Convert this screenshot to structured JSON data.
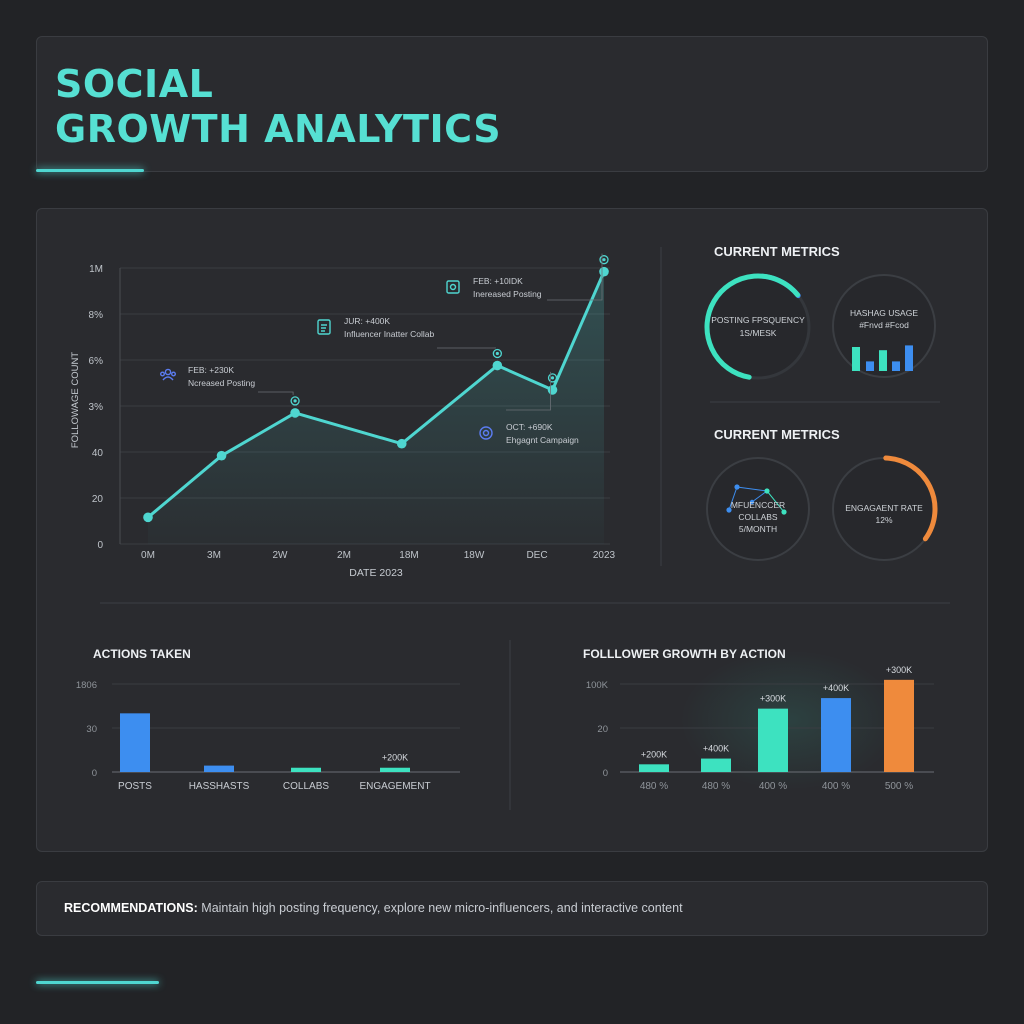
{
  "title": {
    "line1": "SOCIAL",
    "line2": "GROWTH ANALYTICS"
  },
  "colors": {
    "accent": "#4fd6d0",
    "line": "#4fd6d0",
    "blue": "#3d8ef0",
    "teal": "#3de2c0",
    "orange": "#ef8a3c",
    "background": "#222326",
    "panel": "#2a2b2f"
  },
  "metrics": {
    "heading_top": "CURRENT METRICS",
    "heading_bottom": "CURRENT METRICS",
    "posting": {
      "line1": "POSTING FPSQUENCY",
      "line2": "1S/MESK",
      "fraction": 0.78
    },
    "hashtag": {
      "line1": "HASHAG USAGE",
      "line2": "#Fnvd #Fcod",
      "bar_values": [
        0.75,
        0.3,
        0.65,
        0.3,
        0.8
      ]
    },
    "influencer": {
      "line1": "MFUENCCER",
      "line2": "COLLABS",
      "line3": "5/MONTH"
    },
    "engagement": {
      "line1": "ENGAGAENT RATE",
      "line2": "12%",
      "fraction": 0.33
    }
  },
  "chart_data": [
    {
      "type": "line",
      "xlabel": "DATE 2023",
      "ylabel": "FOLLOWAGE COUNT",
      "x_tick_labels": [
        "0M",
        "3M",
        "2W",
        "2M",
        "18M",
        "18W",
        "DEC",
        "2023"
      ],
      "y_tick_labels": [
        "0",
        "20",
        "40",
        "3%",
        "6%",
        "8%",
        "1M"
      ],
      "ylim": [
        0,
        6
      ],
      "series": [
        {
          "x": [
            0,
            1,
            2,
            3.45,
            4.75,
            5.5,
            6.2
          ],
          "y": [
            0.58,
            1.92,
            2.85,
            2.18,
            3.88,
            3.35,
            5.92
          ]
        }
      ],
      "marker_glyphs": [
        {
          "point": 2,
          "icon": "person-group-icon"
        },
        {
          "point": 4,
          "icon": "document-icon"
        },
        {
          "point": 5,
          "icon": "target-icon"
        },
        {
          "point": 6,
          "icon": "image-icon"
        }
      ],
      "annotations": [
        {
          "point": 2,
          "line1": "FEB: +230K",
          "line2": "Ncreased Posting",
          "icon": "person-group-icon"
        },
        {
          "point": 4,
          "line1": "JUR: +400K",
          "line2": "Influencer Inatter Collab",
          "icon": "document-icon"
        },
        {
          "point": 5,
          "line1": "OCT: +690K",
          "line2": "Ehgagnt Campaign",
          "icon": "target-icon"
        },
        {
          "point": 6,
          "line1": "FEB: +10IDK",
          "line2": "Inereased Posting",
          "icon": "image-icon"
        }
      ],
      "grid": true
    },
    {
      "type": "bar",
      "title": "ACTIONS TAKEN",
      "categories": [
        "POSTS",
        "HASSHASTS",
        "COLLABS",
        "ENGAGEMENT"
      ],
      "values": [
        55,
        6,
        4,
        4
      ],
      "bar_colors": [
        "#3d8ef0",
        "#3d8ef0",
        "#3de2c0",
        "#3de2c0"
      ],
      "data_labels": [
        "",
        "",
        "",
        "+200K"
      ],
      "y_tick_labels": [
        "0",
        "30",
        "1806"
      ],
      "ylim": [
        0,
        120
      ],
      "grid": true
    },
    {
      "type": "bar",
      "title": "FOLLLOWER GROWTH BY ACTION",
      "categories": [
        "480 %",
        "480 %",
        "400 %",
        "400 %",
        "500 %"
      ],
      "values": [
        8,
        14,
        66,
        77,
        96
      ],
      "bar_colors": [
        "#3de2c0",
        "#3de2c0",
        "#3de2c0",
        "#3d8ef0",
        "#ef8a3c"
      ],
      "data_labels": [
        "+200K",
        "+400K",
        "+300K",
        "+400K",
        "+300K"
      ],
      "y_tick_labels": [
        "0",
        "20",
        "100K"
      ],
      "ylim": [
        0,
        100
      ],
      "grid": true
    }
  ],
  "recommendations": {
    "label": "RECOMMENDATIONS:",
    "text": "Maintain high posting frequency, explore new micro-influencers, and interactive content"
  }
}
